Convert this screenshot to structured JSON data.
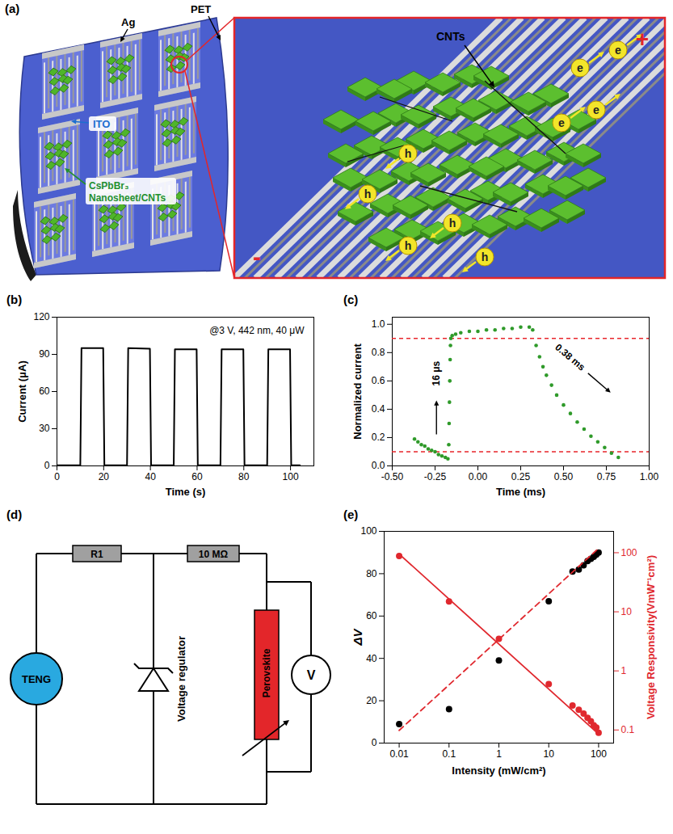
{
  "chart_data": [
    {
      "panel": "(b)",
      "type": "line",
      "annotation": "@3 V, 442 nm, 40 μW",
      "x_label": "Time (s)",
      "y_label": "Current (μA)",
      "color": "#000000",
      "x": [
        0,
        10,
        10.5,
        19.8,
        20.3,
        30,
        30.5,
        39.8,
        40.3,
        50,
        50.5,
        59.8,
        60.3,
        70,
        70.5,
        79.8,
        80.3,
        90,
        90.5,
        99.8,
        100.3,
        104
      ],
      "values": [
        0.5,
        0.5,
        95,
        95,
        0.5,
        0.5,
        95,
        94.5,
        0.5,
        0.5,
        94,
        94,
        0.5,
        0.5,
        94,
        94,
        0.5,
        0.5,
        94,
        94,
        0.5,
        0.5
      ],
      "xlim": [
        0,
        110
      ],
      "xticks": [
        0,
        20,
        40,
        60,
        80,
        100
      ],
      "ylim": [
        0,
        120
      ],
      "yticks": [
        0,
        30,
        60,
        90,
        120
      ]
    },
    {
      "panel": "(c)",
      "type": "scatter",
      "x_label": "Time (ms)",
      "y_label": "Normalized current",
      "color": "#2f9a2a",
      "annotations": [
        "16 μs",
        "0.38 ms"
      ],
      "reference_lines": [
        0.9,
        0.1
      ],
      "x": [
        -0.37,
        -0.35,
        -0.33,
        -0.31,
        -0.29,
        -0.27,
        -0.25,
        -0.23,
        -0.21,
        -0.19,
        -0.175,
        -0.17,
        -0.168,
        -0.166,
        -0.164,
        -0.162,
        -0.16,
        -0.158,
        -0.15,
        -0.13,
        -0.1,
        -0.05,
        0,
        0.05,
        0.1,
        0.15,
        0.2,
        0.25,
        0.3,
        0.32,
        0.34,
        0.36,
        0.38,
        0.4,
        0.43,
        0.46,
        0.5,
        0.54,
        0.58,
        0.62,
        0.66,
        0.7,
        0.74,
        0.78,
        0.82
      ],
      "values": [
        0.19,
        0.17,
        0.15,
        0.14,
        0.12,
        0.11,
        0.1,
        0.08,
        0.07,
        0.06,
        0.05,
        0.15,
        0.3,
        0.45,
        0.6,
        0.75,
        0.85,
        0.9,
        0.92,
        0.93,
        0.94,
        0.95,
        0.95,
        0.96,
        0.96,
        0.97,
        0.97,
        0.98,
        0.98,
        0.96,
        0.85,
        0.77,
        0.7,
        0.64,
        0.57,
        0.5,
        0.43,
        0.37,
        0.31,
        0.26,
        0.21,
        0.17,
        0.13,
        0.09,
        0.06
      ],
      "xlim": [
        -0.5,
        1.0
      ],
      "xticks": [
        {
          "value": -0.5,
          "label": "-0.50"
        },
        {
          "value": -0.25,
          "label": "-0.25"
        },
        {
          "value": 0,
          "label": "0.00"
        },
        {
          "value": 0.25,
          "label": "0.25"
        },
        {
          "value": 0.5,
          "label": "0.50"
        },
        {
          "value": 0.75,
          "label": "0.75"
        },
        {
          "value": 1,
          "label": "1.00"
        }
      ],
      "ylim": [
        0,
        1.05
      ],
      "yticks": [
        {
          "value": 0,
          "label": "0.0"
        },
        0.2,
        0.4,
        0.6,
        0.8,
        {
          "value": 1,
          "label": "1.0"
        }
      ]
    },
    {
      "panel": "(e)",
      "type": "scatter",
      "log": [
        "x",
        "y2"
      ],
      "x_label": "Intensity (mW/cm²)",
      "y_label": "ΔV",
      "y2_label": "Voltage Responsivity(VmW⁻¹cm²)",
      "xlim": [
        0.005,
        200
      ],
      "xticks": [
        0.01,
        0.1,
        1,
        10,
        100
      ],
      "ylim": [
        0,
        100
      ],
      "yticks": [
        0,
        20,
        40,
        60,
        80,
        100
      ],
      "y2lim": [
        0.06,
        230
      ],
      "y2ticks": [
        0.1,
        1,
        10,
        100
      ],
      "series": [
        {
          "type": "scatter",
          "color": "#000000",
          "marker": "circle",
          "x": [
            0.01,
            0.1,
            1,
            10,
            30,
            40,
            50,
            60,
            70,
            80,
            90,
            100
          ],
          "values": [
            9,
            16,
            39,
            67,
            81,
            82,
            84,
            86,
            87,
            88,
            89,
            90
          ]
        },
        {
          "type": "line",
          "color": "#e0282e",
          "line_style": "dashed",
          "x": [
            0.01,
            100
          ],
          "values": [
            6,
            92
          ]
        },
        {
          "type": "scatter",
          "color": "#e0282e",
          "marker": "circle",
          "axis": "y2",
          "x": [
            0.01,
            0.1,
            1,
            10,
            30,
            40,
            50,
            60,
            70,
            80,
            90,
            100
          ],
          "values": [
            88,
            15,
            3.5,
            0.6,
            0.26,
            0.22,
            0.19,
            0.16,
            0.14,
            0.12,
            0.11,
            0.09
          ]
        },
        {
          "type": "line",
          "color": "#e0282e",
          "line_style": "solid",
          "axis": "y2",
          "x": [
            0.01,
            100
          ],
          "values": [
            95,
            0.085
          ]
        }
      ]
    }
  ],
  "diagram_a": {
    "panel": "(a)",
    "labels": {
      "substrate": "PET",
      "electrode": "Ag",
      "conductor": "ITO",
      "active_layer": "CsPbBr₃ Nanosheet/CNTs"
    },
    "inset": {
      "nanotubes": "CNTs",
      "electrons": [
        "e",
        "e",
        "e",
        "e"
      ],
      "holes": [
        "h",
        "h",
        "h",
        "h",
        "h"
      ],
      "positive": "+",
      "negative": "-"
    }
  },
  "diagram_d": {
    "panel": "(d)",
    "source": "TENG",
    "resistor_1": "R1",
    "resistor_2": "10 MΩ",
    "regulator": "Voltage regulator",
    "sensor": "Perovskite",
    "meter": "V"
  }
}
